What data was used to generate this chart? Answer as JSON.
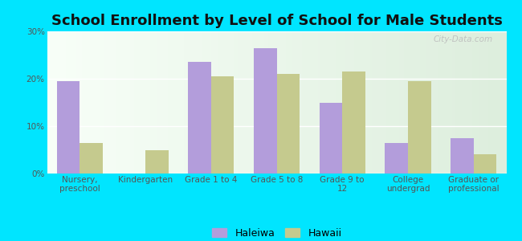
{
  "title": "School Enrollment by Level of School for Male Students",
  "categories": [
    "Nursery,\npreschool",
    "Kindergarten",
    "Grade 1 to 4",
    "Grade 5 to 8",
    "Grade 9 to\n12",
    "College\nundergrad",
    "Graduate or\nprofessional"
  ],
  "haleiwa": [
    19.5,
    0.0,
    23.5,
    26.5,
    15.0,
    6.5,
    7.5
  ],
  "hawaii": [
    6.5,
    5.0,
    20.5,
    21.0,
    21.5,
    19.5,
    4.0
  ],
  "haleiwa_color": "#b39ddb",
  "hawaii_color": "#c5ca8e",
  "background_outer": "#00e5ff",
  "background_inner_left": "#f5fff0",
  "background_inner_right": "#e0f0e0",
  "ylim": [
    0,
    30
  ],
  "yticks": [
    0,
    10,
    20,
    30
  ],
  "ytick_labels": [
    "0%",
    "10%",
    "20%",
    "30%"
  ],
  "bar_width": 0.35,
  "legend_labels": [
    "Haleiwa",
    "Hawaii"
  ],
  "title_fontsize": 13,
  "tick_fontsize": 7.5,
  "legend_fontsize": 9,
  "watermark": "City-Data.com"
}
